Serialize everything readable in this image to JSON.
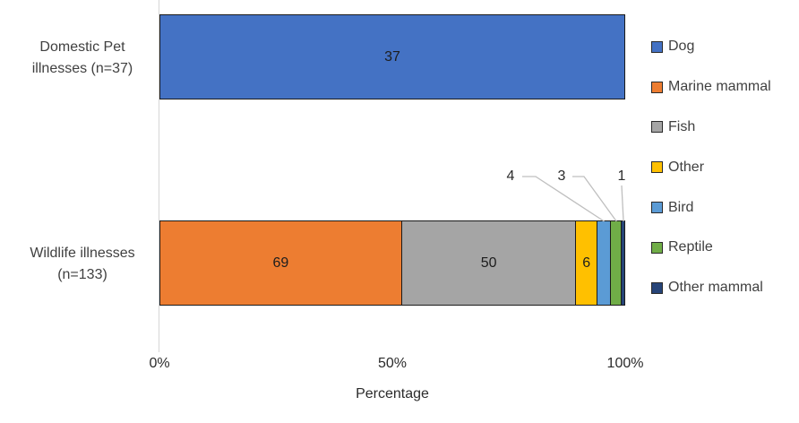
{
  "chart_data": {
    "type": "bar",
    "subtype": "horizontal_percent_stacked",
    "title": "",
    "xlabel": "Percentage",
    "xlim": [
      0,
      100
    ],
    "x_ticks": [
      {
        "label": "0%",
        "value": 0
      },
      {
        "label": "50%",
        "value": 50
      },
      {
        "label": "100%",
        "value": 100
      }
    ],
    "grid": false,
    "legend_position": "right",
    "categories": [
      {
        "label_lines": [
          "Domestic Pet",
          "illnesses (n=37)"
        ],
        "n": 37
      },
      {
        "label_lines": [
          "Wildlife illnesses",
          "(n=133)"
        ],
        "n": 133
      }
    ],
    "series": [
      {
        "name": "Dog",
        "color": "#4472C4",
        "values": [
          37,
          0
        ]
      },
      {
        "name": "Marine mammal",
        "color": "#ED7D31",
        "values": [
          0,
          69
        ]
      },
      {
        "name": "Fish",
        "color": "#A5A5A5",
        "values": [
          0,
          50
        ]
      },
      {
        "name": "Other",
        "color": "#FFC000",
        "values": [
          0,
          6
        ]
      },
      {
        "name": "Bird",
        "color": "#5B9BD5",
        "values": [
          0,
          4
        ]
      },
      {
        "name": "Reptile",
        "color": "#70AD47",
        "values": [
          0,
          3
        ]
      },
      {
        "name": "Other mammal",
        "color": "#264478",
        "values": [
          0,
          1
        ]
      }
    ],
    "data_labels": {
      "inside_min": 5
    }
  }
}
